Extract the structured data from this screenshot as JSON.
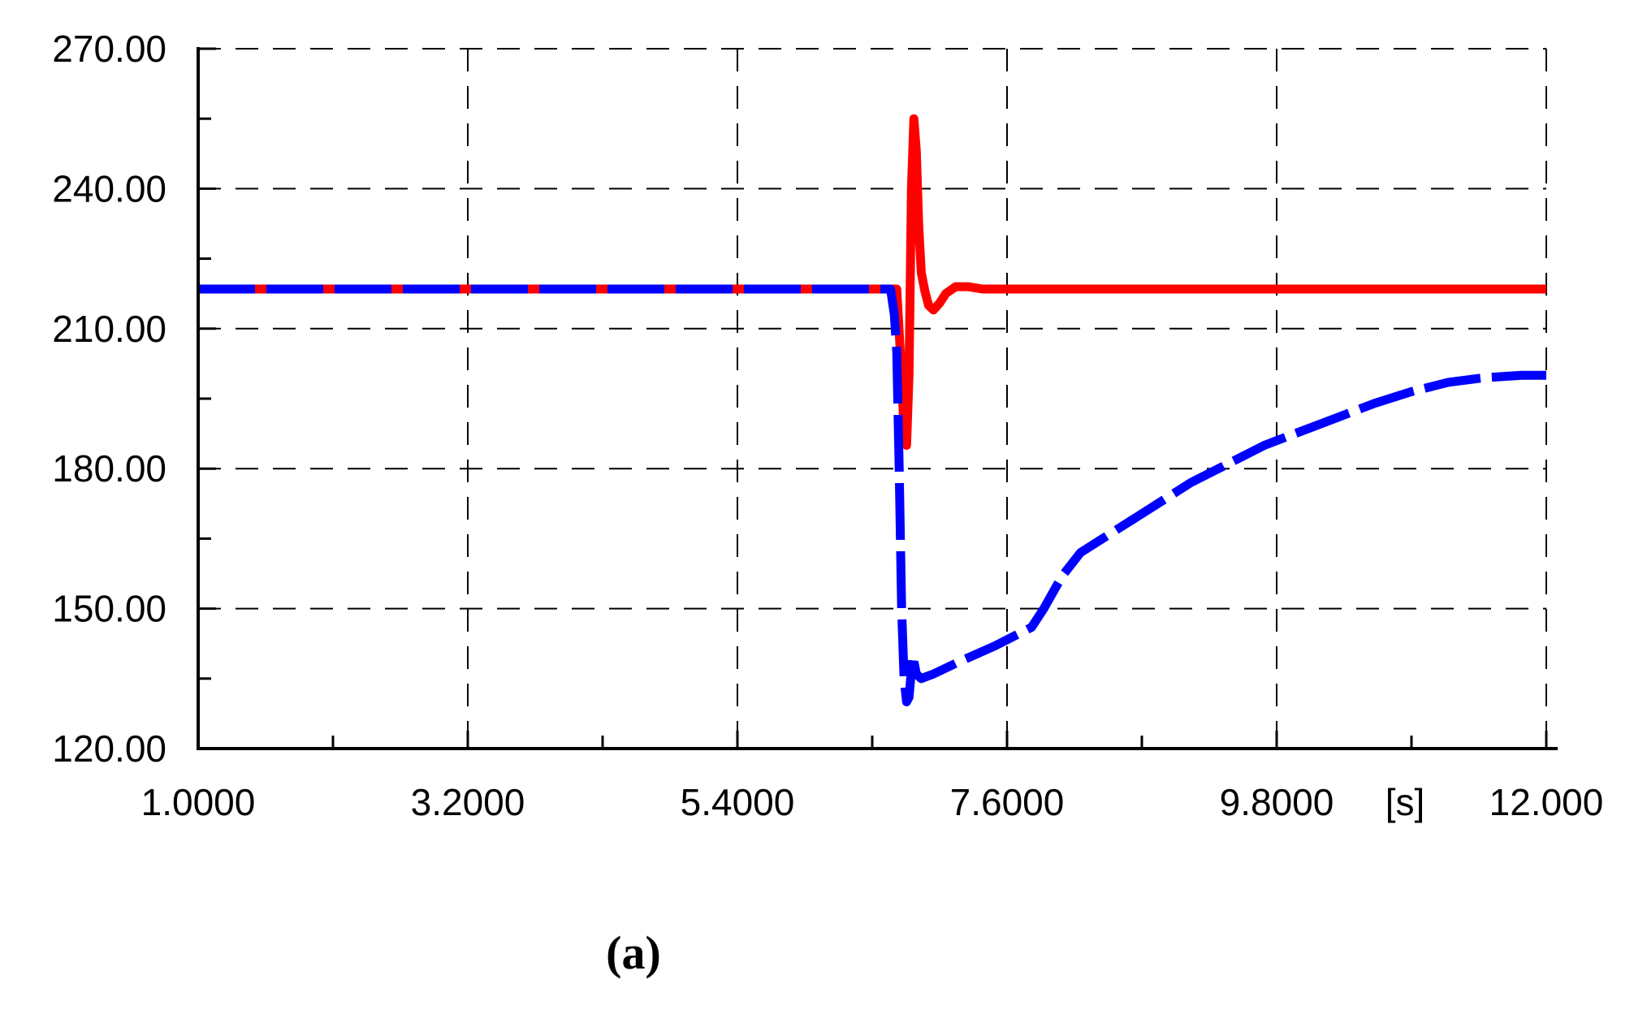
{
  "chart_data": {
    "type": "line",
    "title": "",
    "xlabel": "",
    "ylabel": "",
    "x_unit_label": "[s]",
    "xlim": [
      1.0,
      12.0
    ],
    "ylim": [
      120.0,
      270.0
    ],
    "x_ticks": [
      "1.0000",
      "3.2000",
      "5.4000",
      "7.6000",
      "9.8000",
      "12.000"
    ],
    "y_ticks": [
      "120.00",
      "150.00",
      "180.00",
      "210.00",
      "240.00",
      "270.00"
    ],
    "grid": true,
    "legend": "none",
    "series": [
      {
        "color": "#ff0000",
        "style": "solid-thick",
        "x": [
          1.0,
          6.7,
          6.74,
          6.76,
          6.78,
          6.8,
          6.82,
          6.84,
          6.86,
          6.88,
          6.9,
          6.93,
          6.96,
          7.0,
          7.05,
          7.1,
          7.18,
          7.28,
          7.4,
          12.0
        ],
        "y": [
          218.5,
          218.5,
          200.0,
          188.0,
          185.0,
          200.0,
          240.0,
          255.0,
          248.0,
          232.0,
          222.0,
          218.0,
          215.0,
          214.0,
          215.5,
          217.5,
          219.0,
          219.0,
          218.5,
          218.5
        ]
      },
      {
        "color": "#0000ff",
        "style": "dashed-thick",
        "x": [
          1.0,
          6.65,
          6.68,
          6.7,
          6.72,
          6.74,
          6.76,
          6.78,
          6.8,
          6.83,
          6.86,
          6.9,
          7.0,
          7.2,
          7.5,
          7.8,
          7.9,
          8.05,
          8.2,
          8.5,
          8.8,
          9.1,
          9.4,
          9.7,
          10.0,
          10.3,
          10.6,
          10.9,
          11.2,
          11.5,
          11.8,
          12.0
        ],
        "y": [
          218.5,
          218.5,
          213.0,
          205.0,
          180.0,
          150.0,
          135.0,
          130.0,
          131.0,
          140.0,
          136.0,
          135.0,
          136.0,
          138.5,
          142.0,
          146.0,
          150.0,
          157.0,
          162.0,
          167.0,
          172.0,
          177.0,
          181.0,
          185.0,
          188.0,
          191.0,
          194.0,
          196.5,
          198.5,
          199.5,
          200.0,
          200.0
        ]
      }
    ]
  },
  "caption": "(a)"
}
